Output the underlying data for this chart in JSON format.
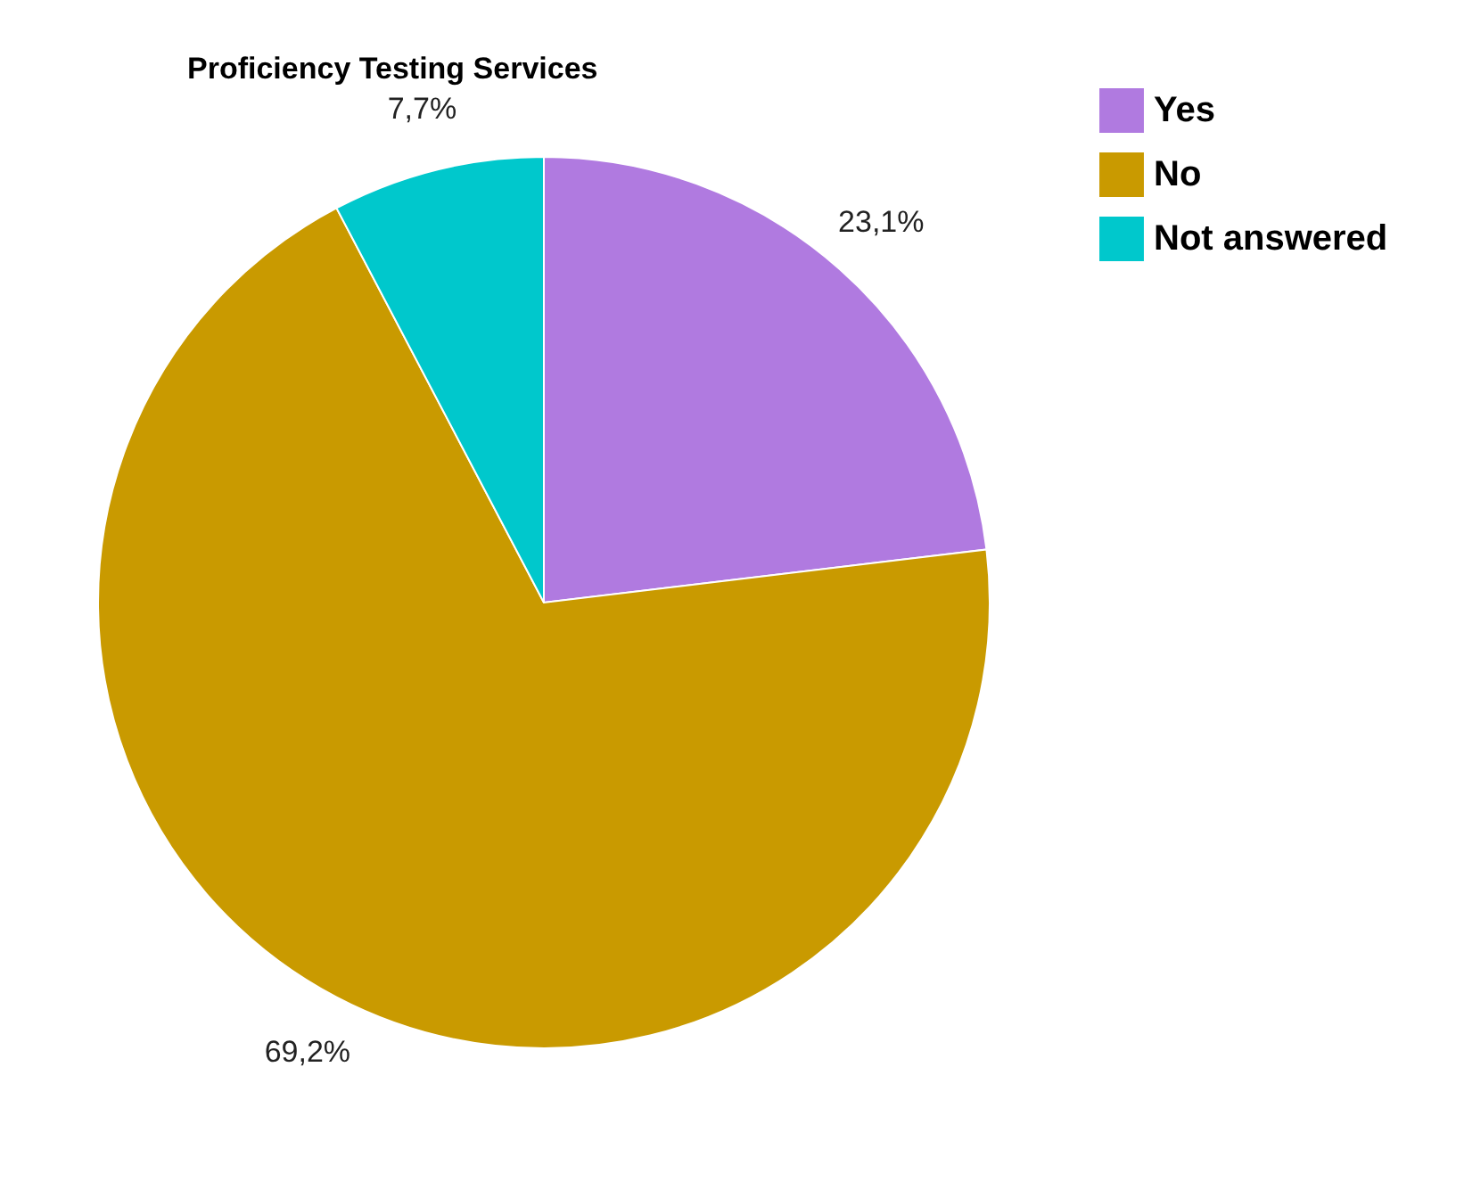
{
  "chart_data": {
    "type": "pie",
    "title": "Proficiency Testing Services",
    "categories": [
      "Yes",
      "No",
      "Not answered"
    ],
    "values": [
      23.1,
      69.2,
      7.7
    ],
    "colors": [
      "#b07ae0",
      "#c99a00",
      "#00c8cc"
    ],
    "value_labels": [
      "23,1%",
      "69,2%",
      "7,7%"
    ],
    "legend": "right"
  }
}
